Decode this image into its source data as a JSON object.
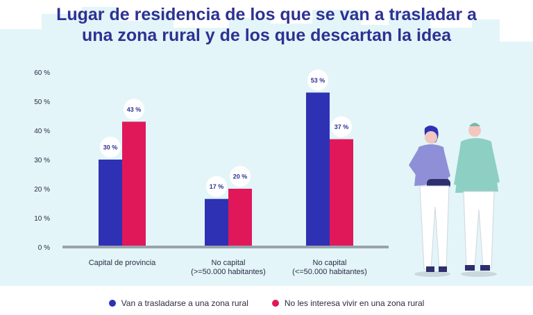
{
  "title_line1": "Lugar de residencia de los que se van a trasladar a",
  "title_line2": "una zona rural y de los que descartan la idea",
  "colors": {
    "blue": "#2e31b4",
    "pink": "#e0185a",
    "title": "#2e3192",
    "background_tint": "#e3f5f8",
    "baseline": "#9aa3ab"
  },
  "chart_data": {
    "type": "bar",
    "title": "Lugar de residencia de los que se van a trasladar a una zona rural y de los que descartan la idea",
    "categories": [
      [
        "Capital de provincia"
      ],
      [
        "No capital",
        "(>=50.000 habitantes)"
      ],
      [
        "No capital",
        "(<=50.000 habitantes)"
      ]
    ],
    "series": [
      {
        "name": "Van a trasladarse a una zona rural",
        "color": "#2e31b4",
        "values": [
          30,
          16.5,
          53
        ],
        "labels": [
          "30 %",
          "17 %",
          "53 %"
        ]
      },
      {
        "name": "No les interesa vivir en una zona rural",
        "color": "#e0185a",
        "values": [
          43,
          20,
          37
        ],
        "labels": [
          "43 %",
          "20 %",
          "37 %"
        ]
      }
    ],
    "yticks": [
      "0 %",
      "10 %",
      "20 %",
      "30 %",
      "40 %",
      "50 %",
      "60 %"
    ],
    "ytick_values": [
      0,
      10,
      20,
      30,
      40,
      50,
      60
    ],
    "ylim": [
      0,
      60
    ],
    "grid": false,
    "legend_position": "bottom"
  },
  "illustration": {
    "name": "two-people-illustration"
  }
}
